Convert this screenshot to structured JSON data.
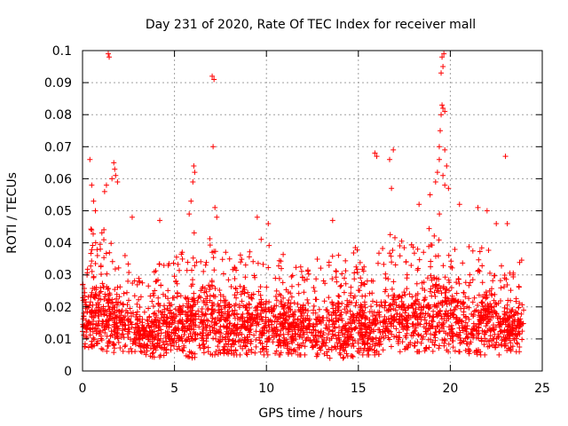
{
  "chart_data": {
    "type": "scatter",
    "title": "Day 231 of 2020, Rate Of TEC Index for receiver mall",
    "xlabel": "GPS time / hours",
    "ylabel": "ROTI / TECUs",
    "xlim": [
      0,
      25
    ],
    "ylim": [
      0,
      0.1
    ],
    "x_ticks": [
      0,
      5,
      10,
      15,
      20,
      25
    ],
    "y_ticks": [
      0,
      0.01,
      0.02,
      0.03,
      0.04,
      0.05,
      0.06,
      0.07,
      0.08,
      0.09,
      0.1
    ],
    "x_tick_labels": [
      "0",
      "5",
      "10",
      "15",
      "20",
      "25"
    ],
    "y_tick_labels": [
      "0",
      "0.01",
      "0.02",
      "0.03",
      "0.04",
      "0.05",
      "0.06",
      "0.07",
      "0.08",
      "0.09",
      "0.1"
    ],
    "grid": true,
    "marker": "+",
    "color": "#ff0000",
    "envelope": [
      [
        0.0,
        0.008,
        0.04
      ],
      [
        0.5,
        0.006,
        0.045
      ],
      [
        1.0,
        0.006,
        0.044
      ],
      [
        1.5,
        0.005,
        0.045
      ],
      [
        2.0,
        0.006,
        0.04
      ],
      [
        2.5,
        0.006,
        0.034
      ],
      [
        3.0,
        0.006,
        0.03
      ],
      [
        3.5,
        0.005,
        0.026
      ],
      [
        4.0,
        0.004,
        0.038
      ],
      [
        4.5,
        0.005,
        0.036
      ],
      [
        5.0,
        0.005,
        0.036
      ],
      [
        5.5,
        0.005,
        0.04
      ],
      [
        6.0,
        0.004,
        0.044
      ],
      [
        6.5,
        0.005,
        0.04
      ],
      [
        7.0,
        0.005,
        0.042
      ],
      [
        7.5,
        0.005,
        0.04
      ],
      [
        8.0,
        0.005,
        0.036
      ],
      [
        8.5,
        0.005,
        0.036
      ],
      [
        9.0,
        0.005,
        0.04
      ],
      [
        9.5,
        0.005,
        0.042
      ],
      [
        10.0,
        0.005,
        0.04
      ],
      [
        10.5,
        0.005,
        0.038
      ],
      [
        11.0,
        0.005,
        0.04
      ],
      [
        11.5,
        0.005,
        0.036
      ],
      [
        12.0,
        0.005,
        0.034
      ],
      [
        12.5,
        0.005,
        0.036
      ],
      [
        13.0,
        0.004,
        0.034
      ],
      [
        13.5,
        0.004,
        0.04
      ],
      [
        14.0,
        0.004,
        0.038
      ],
      [
        14.5,
        0.004,
        0.034
      ],
      [
        15.0,
        0.005,
        0.042
      ],
      [
        15.5,
        0.005,
        0.028
      ],
      [
        16.0,
        0.005,
        0.036
      ],
      [
        16.5,
        0.006,
        0.042
      ],
      [
        17.0,
        0.006,
        0.044
      ],
      [
        17.5,
        0.006,
        0.04
      ],
      [
        18.0,
        0.006,
        0.04
      ],
      [
        18.5,
        0.006,
        0.042
      ],
      [
        19.0,
        0.006,
        0.048
      ],
      [
        19.5,
        0.006,
        0.05
      ],
      [
        20.0,
        0.006,
        0.044
      ],
      [
        20.5,
        0.006,
        0.046
      ],
      [
        21.0,
        0.005,
        0.04
      ],
      [
        21.5,
        0.005,
        0.036
      ],
      [
        22.0,
        0.005,
        0.044
      ],
      [
        22.5,
        0.005,
        0.04
      ],
      [
        23.0,
        0.005,
        0.034
      ],
      [
        23.5,
        0.006,
        0.03
      ],
      [
        24.0,
        0.006,
        0.038
      ]
    ],
    "outliers": [
      [
        0.4,
        0.066
      ],
      [
        0.5,
        0.058
      ],
      [
        0.6,
        0.053
      ],
      [
        0.7,
        0.05
      ],
      [
        1.2,
        0.056
      ],
      [
        1.3,
        0.058
      ],
      [
        1.4,
        0.099
      ],
      [
        1.45,
        0.098
      ],
      [
        1.6,
        0.06
      ],
      [
        1.7,
        0.065
      ],
      [
        1.75,
        0.063
      ],
      [
        1.8,
        0.061
      ],
      [
        1.9,
        0.059
      ],
      [
        2.7,
        0.048
      ],
      [
        4.2,
        0.047
      ],
      [
        5.8,
        0.049
      ],
      [
        5.9,
        0.053
      ],
      [
        6.0,
        0.059
      ],
      [
        6.05,
        0.064
      ],
      [
        6.1,
        0.062
      ],
      [
        7.05,
        0.092
      ],
      [
        7.15,
        0.091
      ],
      [
        7.1,
        0.07
      ],
      [
        7.2,
        0.051
      ],
      [
        7.3,
        0.048
      ],
      [
        9.5,
        0.048
      ],
      [
        10.1,
        0.046
      ],
      [
        13.6,
        0.047
      ],
      [
        15.9,
        0.068
      ],
      [
        16.0,
        0.067
      ],
      [
        16.7,
        0.066
      ],
      [
        16.9,
        0.069
      ],
      [
        16.8,
        0.057
      ],
      [
        18.3,
        0.052
      ],
      [
        18.9,
        0.055
      ],
      [
        19.2,
        0.059
      ],
      [
        19.3,
        0.062
      ],
      [
        19.4,
        0.07
      ],
      [
        19.45,
        0.075
      ],
      [
        19.5,
        0.08
      ],
      [
        19.55,
        0.083
      ],
      [
        19.6,
        0.082
      ],
      [
        19.7,
        0.081
      ],
      [
        19.5,
        0.093
      ],
      [
        19.6,
        0.095
      ],
      [
        19.55,
        0.098
      ],
      [
        19.65,
        0.099
      ],
      [
        19.4,
        0.066
      ],
      [
        19.7,
        0.069
      ],
      [
        19.8,
        0.064
      ],
      [
        19.6,
        0.061
      ],
      [
        19.7,
        0.058
      ],
      [
        19.9,
        0.057
      ],
      [
        20.5,
        0.052
      ],
      [
        21.5,
        0.051
      ],
      [
        22.0,
        0.05
      ],
      [
        22.5,
        0.046
      ],
      [
        23.0,
        0.067
      ],
      [
        23.1,
        0.046
      ]
    ]
  }
}
